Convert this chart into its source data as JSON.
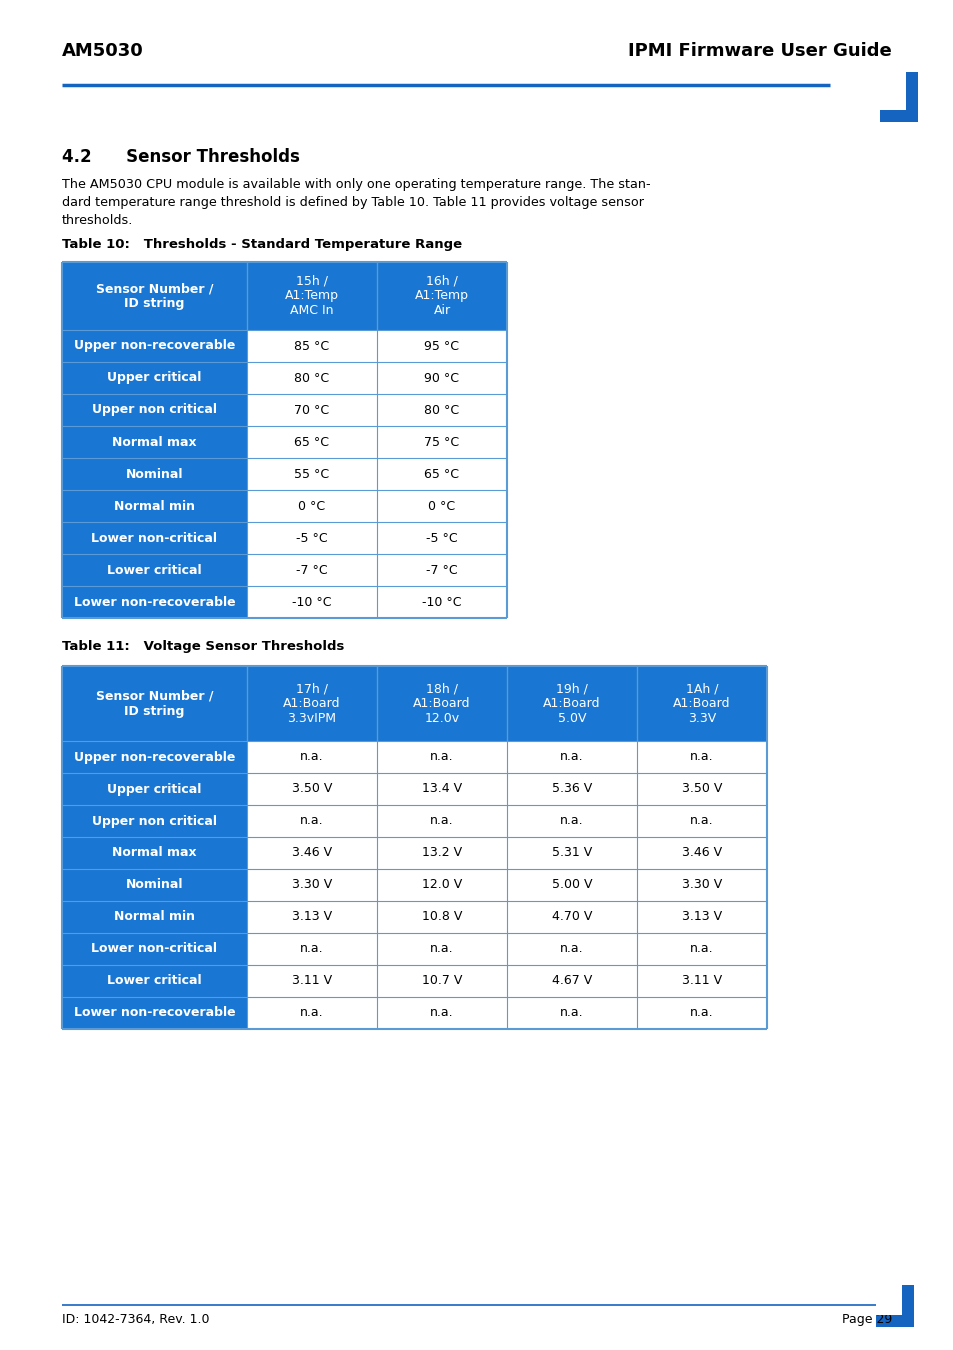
{
  "header_left": "AM5030",
  "header_right": "IPMI Firmware User Guide",
  "section_title": "4.2      Sensor Thresholds",
  "body_line1": "The AM5030 CPU module is available with only one operating temperature range. The stan-",
  "body_line2": "dard temperature range threshold is defined by Table 10. Table 11 provides voltage sensor",
  "body_line3": "thresholds.",
  "table1_title": "Table 10:   Thresholds - Standard Temperature Range",
  "table1_header": [
    "Sensor Number /\nID string",
    "15h /\nA1:Temp\nAMC In",
    "16h /\nA1:Temp\nAir"
  ],
  "table1_rows": [
    [
      "Upper non-recoverable",
      "85 °C",
      "95 °C"
    ],
    [
      "Upper critical",
      "80 °C",
      "90 °C"
    ],
    [
      "Upper non critical",
      "70 °C",
      "80 °C"
    ],
    [
      "Normal max",
      "65 °C",
      "75 °C"
    ],
    [
      "Nominal",
      "55 °C",
      "65 °C"
    ],
    [
      "Normal min",
      "0 °C",
      "0 °C"
    ],
    [
      "Lower non-critical",
      "-5 °C",
      "-5 °C"
    ],
    [
      "Lower critical",
      "-7 °C",
      "-7 °C"
    ],
    [
      "Lower non-recoverable",
      "-10 °C",
      "-10 °C"
    ]
  ],
  "table2_title": "Table 11:   Voltage Sensor Thresholds",
  "table2_header": [
    "Sensor Number /\nID string",
    "17h /\nA1:Board\n3.3vIPM",
    "18h /\nA1:Board\n12.0v",
    "19h /\nA1:Board\n5.0V",
    "1Ah /\nA1:Board\n3.3V"
  ],
  "table2_rows": [
    [
      "Upper non-recoverable",
      "n.a.",
      "n.a.",
      "n.a.",
      "n.a."
    ],
    [
      "Upper critical",
      "3.50 V",
      "13.4 V",
      "5.36 V",
      "3.50 V"
    ],
    [
      "Upper non critical",
      "n.a.",
      "n.a.",
      "n.a.",
      "n.a."
    ],
    [
      "Normal max",
      "3.46 V",
      "13.2 V",
      "5.31 V",
      "3.46 V"
    ],
    [
      "Nominal",
      "3.30 V",
      "12.0 V",
      "5.00 V",
      "3.30 V"
    ],
    [
      "Normal min",
      "3.13 V",
      "10.8 V",
      "4.70 V",
      "3.13 V"
    ],
    [
      "Lower non-critical",
      "n.a.",
      "n.a.",
      "n.a.",
      "n.a."
    ],
    [
      "Lower critical",
      "3.11 V",
      "10.7 V",
      "4.67 V",
      "3.11 V"
    ],
    [
      "Lower non-recoverable",
      "n.a.",
      "n.a.",
      "n.a.",
      "n.a."
    ]
  ],
  "footer_left": "ID: 1042-7364, Rev. 1.0",
  "footer_right": "Page 29",
  "blue_color": "#1565C0",
  "cell_blue": "#1976D2",
  "light_blue_border": "#5B9BD5",
  "white": "#FFFFFF",
  "black": "#000000",
  "bg_color": "#FFFFFF"
}
